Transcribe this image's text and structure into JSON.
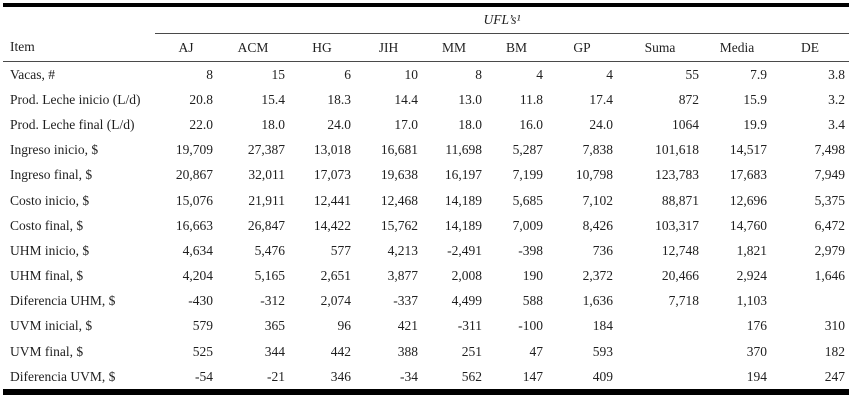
{
  "table": {
    "group_title": "UFL’s¹",
    "item_header": "Item",
    "columns": [
      "AJ",
      "ACM",
      "HG",
      "JIH",
      "MM",
      "BM",
      "GP",
      "Suma",
      "Media",
      "DE"
    ],
    "rows": [
      {
        "label": "Vacas, #",
        "values": [
          "8",
          "15",
          "6",
          "10",
          "8",
          "4",
          "4",
          "55",
          "7.9",
          "3.8"
        ]
      },
      {
        "label": "Prod. Leche inicio (L/d)",
        "values": [
          "20.8",
          "15.4",
          "18.3",
          "14.4",
          "13.0",
          "11.8",
          "17.4",
          "872",
          "15.9",
          "3.2"
        ]
      },
      {
        "label": "Prod. Leche final (L/d)",
        "values": [
          "22.0",
          "18.0",
          "24.0",
          "17.0",
          "18.0",
          "16.0",
          "24.0",
          "1064",
          "19.9",
          "3.4"
        ]
      },
      {
        "label": "Ingreso inicio, $",
        "values": [
          "19,709",
          "27,387",
          "13,018",
          "16,681",
          "11,698",
          "5,287",
          "7,838",
          "101,618",
          "14,517",
          "7,498"
        ]
      },
      {
        "label": "Ingreso final, $",
        "values": [
          "20,867",
          "32,011",
          "17,073",
          "19,638",
          "16,197",
          "7,199",
          "10,798",
          "123,783",
          "17,683",
          "7,949"
        ]
      },
      {
        "label": "Costo inicio, $",
        "values": [
          "15,076",
          "21,911",
          "12,441",
          "12,468",
          "14,189",
          "5,685",
          "7,102",
          "88,871",
          "12,696",
          "5,375"
        ]
      },
      {
        "label": "Costo final, $",
        "values": [
          "16,663",
          "26,847",
          "14,422",
          "15,762",
          "14,189",
          "7,009",
          "8,426",
          "103,317",
          "14,760",
          "6,472"
        ]
      },
      {
        "label": "UHM inicio, $",
        "values": [
          "4,634",
          "5,476",
          "577",
          "4,213",
          "-2,491",
          "-398",
          "736",
          "12,748",
          "1,821",
          "2,979"
        ]
      },
      {
        "label": "UHM final, $",
        "values": [
          "4,204",
          "5,165",
          "2,651",
          "3,877",
          "2,008",
          "190",
          "2,372",
          "20,466",
          "2,924",
          "1,646"
        ]
      },
      {
        "label": "Diferencia UHM, $",
        "values": [
          "-430",
          "-312",
          "2,074",
          "-337",
          "4,499",
          "588",
          "1,636",
          "7,718",
          "1,103",
          ""
        ]
      },
      {
        "label": "UVM inicial, $",
        "values": [
          "579",
          "365",
          "96",
          "421",
          "-311",
          "-100",
          "184",
          "",
          "176",
          "310"
        ]
      },
      {
        "label": "UVM final, $",
        "values": [
          "525",
          "344",
          "442",
          "388",
          "251",
          "47",
          "593",
          "",
          "370",
          "182"
        ]
      },
      {
        "label": "Diferencia UVM, $",
        "values": [
          "-54",
          "-21",
          "346",
          "-34",
          "562",
          "147",
          "409",
          "",
          "194",
          "247"
        ]
      }
    ]
  }
}
